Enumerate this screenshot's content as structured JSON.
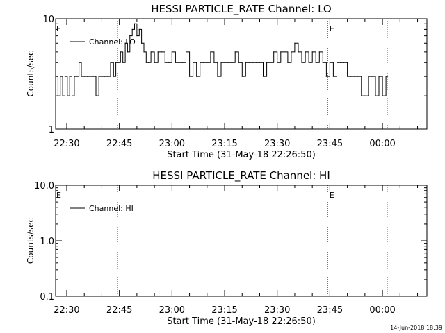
{
  "chart_data": [
    {
      "type": "line",
      "title": "HESSI PARTICLE_RATE Channel: LO",
      "xlabel": "Start Time (31-May-18 22:26:50)",
      "ylabel": "Counts/sec",
      "x_scale": "time",
      "x_range": [
        "22:26:50",
        "00:12:40"
      ],
      "x_ticks": [
        "22:30",
        "22:45",
        "23:00",
        "23:15",
        "23:30",
        "23:45",
        "00:00"
      ],
      "y_scale": "log",
      "ylim": [
        1,
        10
      ],
      "y_ticks": [
        "1",
        "10"
      ],
      "grid": false,
      "legend_position": "top-left",
      "flags": [
        {
          "label": "E",
          "time": "22:26:50"
        },
        {
          "label": "E",
          "time": "23:44:40"
        }
      ],
      "vertical_lines": [
        "22:44:30",
        "23:44:20",
        "00:01:20"
      ],
      "series": [
        {
          "name": "Channel: LO",
          "x": [
            "22:26:50",
            "22:27:30",
            "22:28:10",
            "22:28:50",
            "22:29:30",
            "22:30:10",
            "22:30:50",
            "22:31:30",
            "22:32:10",
            "22:32:50",
            "22:33:30",
            "22:34:10",
            "22:35:00",
            "22:35:50",
            "22:36:40",
            "22:37:30",
            "22:38:20",
            "22:39:10",
            "22:40:00",
            "22:40:50",
            "22:41:40",
            "22:42:30",
            "22:43:20",
            "22:44:00",
            "22:44:40",
            "22:45:20",
            "22:46:00",
            "22:46:40",
            "22:47:20",
            "22:48:00",
            "22:48:40",
            "22:49:20",
            "22:50:00",
            "22:50:40",
            "22:51:20",
            "22:52:00",
            "22:52:40",
            "22:53:20",
            "22:54:00",
            "22:55:00",
            "22:56:00",
            "22:57:00",
            "22:58:00",
            "22:59:00",
            "23:00:00",
            "23:01:00",
            "23:02:00",
            "23:03:00",
            "23:04:00",
            "23:05:00",
            "23:06:00",
            "23:07:00",
            "23:08:00",
            "23:09:00",
            "23:10:00",
            "23:11:00",
            "23:12:00",
            "23:13:00",
            "23:14:00",
            "23:15:00",
            "23:16:00",
            "23:17:00",
            "23:18:00",
            "23:19:00",
            "23:20:00",
            "23:21:00",
            "23:22:00",
            "23:23:00",
            "23:24:00",
            "23:25:00",
            "23:26:00",
            "23:27:00",
            "23:28:00",
            "23:29:00",
            "23:30:00",
            "23:31:00",
            "23:32:00",
            "23:33:00",
            "23:34:00",
            "23:35:00",
            "23:36:00",
            "23:37:00",
            "23:38:00",
            "23:39:00",
            "23:40:00",
            "23:41:00",
            "23:42:00",
            "23:43:00",
            "23:44:00",
            "23:45:00",
            "23:46:00",
            "23:47:00",
            "23:48:00",
            "23:49:00",
            "23:50:00",
            "23:51:00",
            "23:52:00",
            "23:53:00",
            "23:54:00",
            "23:55:00",
            "23:56:00",
            "23:57:00",
            "23:58:00",
            "23:59:00",
            "00:00:00",
            "00:01:00"
          ],
          "values": [
            3,
            2,
            3,
            2,
            3,
            2,
            3,
            2,
            3,
            3,
            4,
            3,
            3,
            3,
            3,
            3,
            2,
            3,
            3,
            3,
            3,
            4,
            3,
            4,
            4,
            5,
            4,
            6,
            5,
            7,
            8,
            9,
            7,
            8,
            6,
            5,
            4,
            4,
            5,
            4,
            5,
            5,
            4,
            4,
            5,
            4,
            4,
            4,
            5,
            3,
            4,
            3,
            4,
            4,
            4,
            5,
            4,
            3,
            4,
            4,
            4,
            4,
            5,
            4,
            3,
            4,
            4,
            4,
            4,
            4,
            3,
            4,
            4,
            5,
            4,
            5,
            5,
            4,
            5,
            6,
            5,
            4,
            5,
            4,
            5,
            4,
            5,
            4,
            3,
            4,
            3,
            4,
            4,
            4,
            3,
            3,
            3,
            3,
            2,
            2,
            3,
            3,
            2,
            3,
            2,
            3
          ]
        }
      ]
    },
    {
      "type": "line",
      "title": "HESSI PARTICLE_RATE Channel: HI",
      "xlabel": "Start Time (31-May-18 22:26:50)",
      "ylabel": "Counts/sec",
      "x_scale": "time",
      "x_range": [
        "22:26:50",
        "00:12:40"
      ],
      "x_ticks": [
        "22:30",
        "22:45",
        "23:00",
        "23:15",
        "23:30",
        "23:45",
        "00:00"
      ],
      "y_scale": "log",
      "ylim": [
        0.1,
        10
      ],
      "y_ticks": [
        "0.1",
        "1.0",
        "10.0"
      ],
      "grid": false,
      "legend_position": "top-left",
      "flags": [
        {
          "label": "E",
          "time": "22:26:50"
        },
        {
          "label": "E",
          "time": "23:44:40"
        }
      ],
      "vertical_lines": [
        "22:44:30",
        "23:44:20",
        "00:01:20"
      ],
      "series": [
        {
          "name": "Channel: HI",
          "x": [],
          "values": []
        }
      ]
    }
  ],
  "footer_timestamp": "14-Jun-2018 18:39"
}
